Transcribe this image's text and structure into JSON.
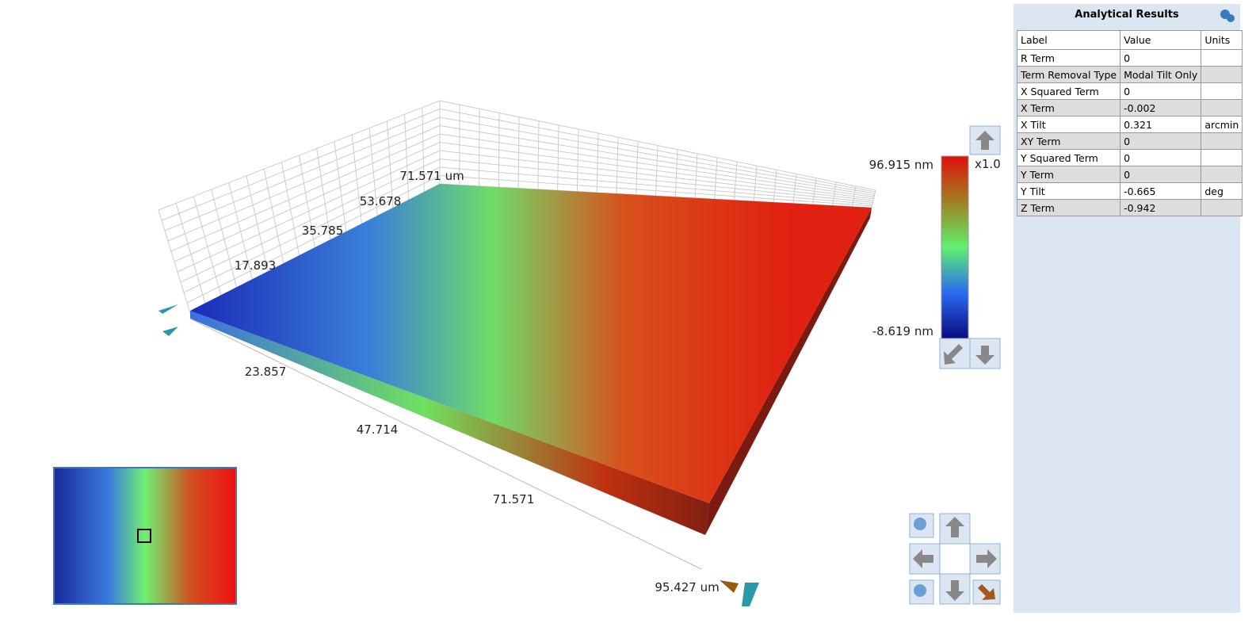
{
  "viewer": {
    "x_axis_labels": [
      "23.857",
      "47.714",
      "71.571",
      "95.427 um"
    ],
    "y_axis_labels": [
      "17.893",
      "35.785",
      "53.678",
      "71.571 um"
    ],
    "colorbar": {
      "max_label": "96.915 nm",
      "min_label": "-8.619 nm",
      "scale_label": "x1.0"
    }
  },
  "panel": {
    "title": "Analytical Results",
    "table": {
      "header": [
        "Label",
        "Value",
        "Units"
      ],
      "rows": [
        [
          "R Term",
          "0",
          ""
        ],
        [
          "Term Removal Type",
          "Modal Tilt Only",
          ""
        ],
        [
          "X Squared Term",
          "0",
          ""
        ],
        [
          "X Term",
          "-0.002",
          ""
        ],
        [
          "X Tilt",
          "0.321",
          "arcmin"
        ],
        [
          "XY Term",
          "0",
          ""
        ],
        [
          "Y Squared Term",
          "0",
          ""
        ],
        [
          "Y Term",
          "0",
          ""
        ],
        [
          "Y Tilt",
          "-0.665",
          "deg"
        ],
        [
          "Z Term",
          "-0.942",
          ""
        ]
      ]
    }
  }
}
